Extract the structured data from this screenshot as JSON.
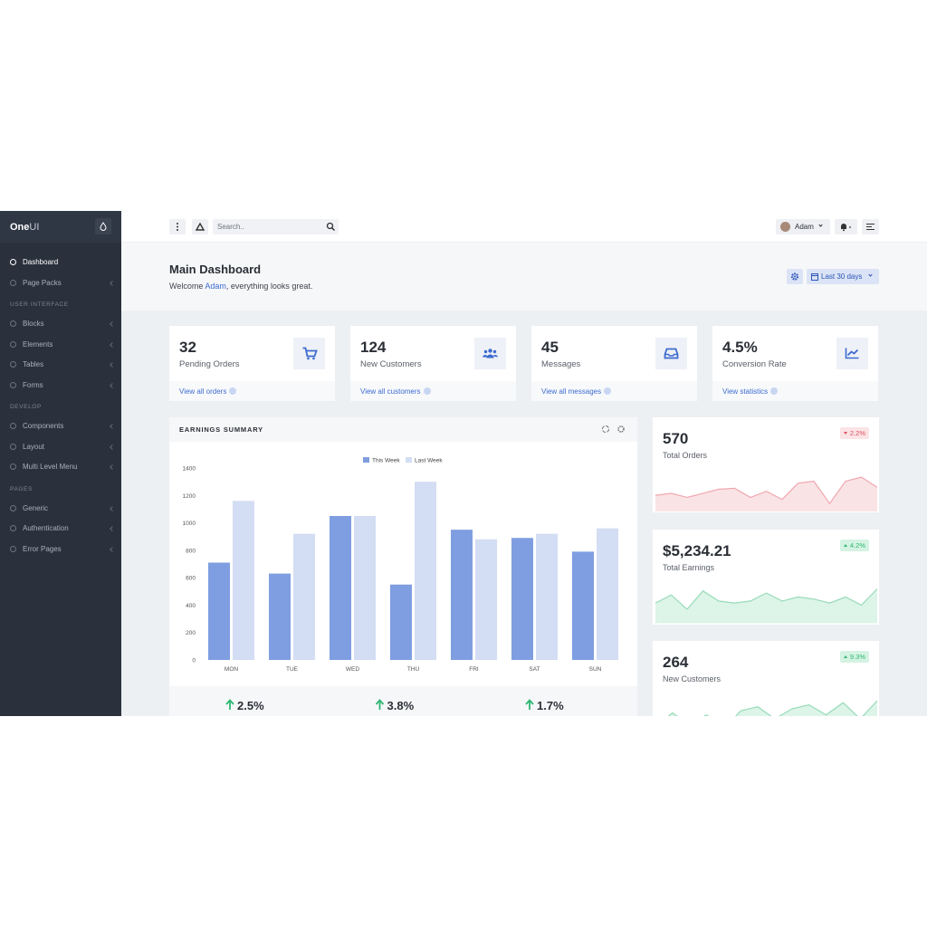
{
  "brand": {
    "name": "One",
    "suffix": "UI"
  },
  "sidebar": {
    "top": [
      "Dashboard",
      "Page Packs"
    ],
    "groups": [
      {
        "heading": "USER INTERFACE",
        "items": [
          "Blocks",
          "Elements",
          "Tables",
          "Forms"
        ]
      },
      {
        "heading": "DEVELOP",
        "items": [
          "Components",
          "Layout",
          "Multi Level Menu"
        ]
      },
      {
        "heading": "PAGES",
        "items": [
          "Generic",
          "Authentication",
          "Error Pages"
        ]
      }
    ]
  },
  "header": {
    "search": "Search..",
    "user": "Adam"
  },
  "hero": {
    "title": "Main Dashboard",
    "welcome": "Welcome ",
    "name": "Adam",
    "rest": ", everything looks great.",
    "range": "Last 30 days"
  },
  "stats": [
    {
      "value": "32",
      "label": "Pending Orders",
      "link": "View all orders"
    },
    {
      "value": "124",
      "label": "New Customers",
      "link": "View all customers"
    },
    {
      "value": "45",
      "label": "Messages",
      "link": "View all messages"
    },
    {
      "value": "4.5%",
      "label": "Conversion Rate",
      "link": "View statistics"
    }
  ],
  "chart_data": {
    "type": "bar",
    "title": "EARNINGS SUMMARY",
    "categories": [
      "MON",
      "TUE",
      "WED",
      "THU",
      "FRI",
      "SAT",
      "SUN"
    ],
    "series": [
      {
        "name": "This Week",
        "color": "#7f9ee1",
        "values": [
          710,
          630,
          1050,
          550,
          950,
          890,
          790
        ]
      },
      {
        "name": "Last Week",
        "color": "#d3ddf3",
        "values": [
          1160,
          920,
          1050,
          1300,
          880,
          920,
          960
        ]
      }
    ],
    "ylim": [
      0,
      1400
    ],
    "yticks": [
      0,
      200,
      400,
      600,
      800,
      1000,
      1200,
      1400
    ],
    "grid": false,
    "legend": "top"
  },
  "earnings_footer": [
    "2.5%",
    "3.8%",
    "1.7%"
  ],
  "widgets": [
    {
      "value": "570",
      "label": "Total Orders",
      "change": "2.2%",
      "trend": "down",
      "color": "#e04f5f",
      "values": [
        16,
        18,
        14,
        18,
        22,
        23,
        14,
        20,
        12,
        28,
        30,
        8,
        30,
        34,
        24
      ]
    },
    {
      "value": "$5,234.21",
      "label": "Total Earnings",
      "change": "4.2%",
      "trend": "up",
      "color": "#2eb872",
      "values": [
        20,
        28,
        14,
        32,
        22,
        20,
        22,
        30,
        22,
        26,
        24,
        20,
        26,
        18,
        34
      ]
    },
    {
      "value": "264",
      "label": "New Customers",
      "change": "9.3%",
      "trend": "up",
      "color": "#2eb872",
      "values": [
        8,
        22,
        10,
        20,
        6,
        24,
        28,
        16,
        26,
        30,
        20,
        32,
        16,
        34
      ]
    }
  ]
}
